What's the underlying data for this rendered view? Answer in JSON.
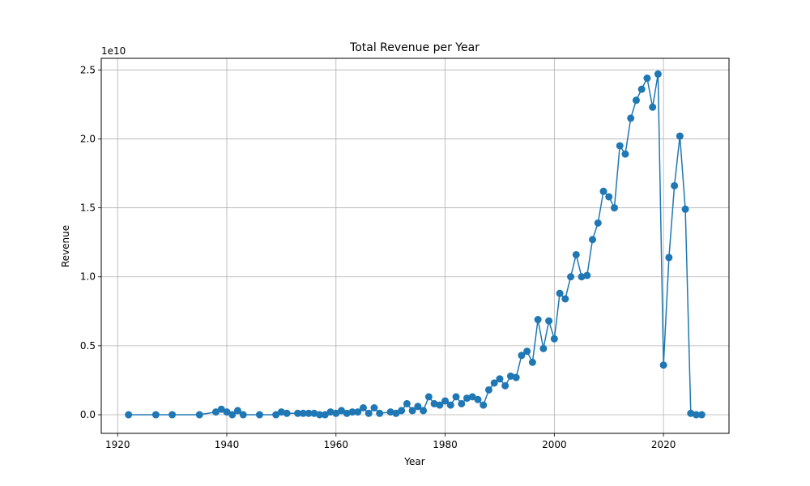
{
  "chart_data": {
    "type": "line",
    "title": "Total Revenue per Year",
    "xlabel": "Year",
    "ylabel": "Revenue",
    "y_scale_label": "1e10",
    "xlim": [
      1917,
      2032
    ],
    "ylim": [
      -0.135,
      2.584
    ],
    "y_unit_multiplier": 10000000000,
    "x_ticks": [
      1920,
      1940,
      1960,
      1980,
      2000,
      2020
    ],
    "x_tick_labels": [
      "1920",
      "1940",
      "1960",
      "1980",
      "2000",
      "2020"
    ],
    "y_ticks": [
      0.0,
      0.5,
      1.0,
      1.5,
      2.0,
      2.5
    ],
    "y_tick_labels": [
      "0.0",
      "0.5",
      "1.0",
      "1.5",
      "2.0",
      "2.5"
    ],
    "grid": true,
    "colors": {
      "series": "#1f77b4",
      "grid": "#b0b0b0"
    },
    "series": [
      {
        "x": [
          1922,
          1927,
          1930,
          1935,
          1938,
          1939,
          1940,
          1941,
          1942,
          1943,
          1946,
          1949,
          1950,
          1951,
          1953,
          1954,
          1955,
          1956,
          1957,
          1958,
          1959,
          1960,
          1961,
          1962,
          1963,
          1964,
          1965,
          1966,
          1967,
          1968,
          1970,
          1971,
          1972,
          1973,
          1974,
          1975,
          1976,
          1977,
          1978,
          1979,
          1980,
          1981,
          1982,
          1983,
          1984,
          1985,
          1986,
          1987,
          1988,
          1989,
          1990,
          1991,
          1992,
          1993,
          1994,
          1995,
          1996,
          1997,
          1998,
          1999,
          2000,
          2001,
          2002,
          2003,
          2004,
          2005,
          2006,
          2007,
          2008,
          2009,
          2010,
          2011,
          2012,
          2013,
          2014,
          2015,
          2016,
          2017,
          2018,
          2019,
          2020,
          2021,
          2022,
          2023,
          2024,
          2025,
          2026,
          2027
        ],
        "y": [
          0.0,
          0.0,
          0.0,
          0.0,
          0.02,
          0.04,
          0.02,
          0.0,
          0.03,
          0.0,
          0.0,
          0.0,
          0.02,
          0.01,
          0.01,
          0.01,
          0.01,
          0.01,
          0.0,
          0.0,
          0.02,
          0.01,
          0.03,
          0.01,
          0.02,
          0.02,
          0.05,
          0.01,
          0.05,
          0.01,
          0.02,
          0.01,
          0.03,
          0.08,
          0.03,
          0.06,
          0.03,
          0.13,
          0.08,
          0.07,
          0.1,
          0.07,
          0.13,
          0.08,
          0.12,
          0.13,
          0.11,
          0.07,
          0.18,
          0.23,
          0.26,
          0.21,
          0.28,
          0.27,
          0.43,
          0.46,
          0.38,
          0.69,
          0.48,
          0.68,
          0.55,
          0.88,
          0.84,
          1.0,
          1.16,
          1.0,
          1.01,
          1.27,
          1.39,
          1.62,
          1.58,
          1.5,
          1.95,
          1.89,
          2.15,
          2.28,
          2.36,
          2.44,
          2.23,
          2.47,
          0.36,
          1.14,
          1.66,
          2.02,
          1.49,
          0.01,
          0.0,
          0.0
        ]
      }
    ]
  }
}
